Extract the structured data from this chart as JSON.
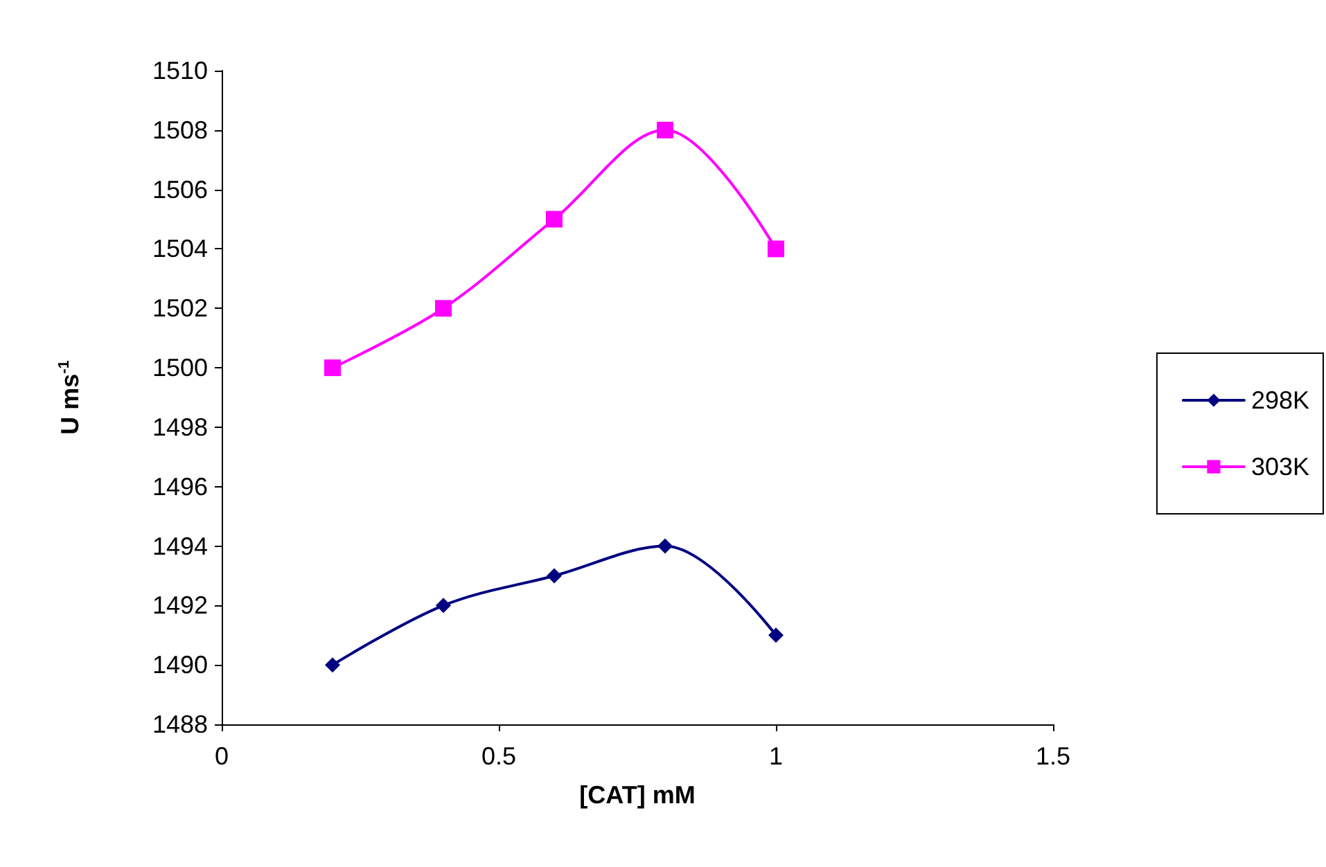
{
  "chart_data": {
    "type": "line",
    "xlabel": "[CAT] mM",
    "ylabel": "U ms$^{-1}$",
    "x": [
      0.2,
      0.4,
      0.6,
      0.8,
      1
    ],
    "series": [
      {
        "name": "298K",
        "color": "#000080",
        "marker": "diamond",
        "values": [
          1490,
          1492,
          1493,
          1494,
          1491
        ]
      },
      {
        "name": "303K",
        "color": "#ff00ff",
        "marker": "square",
        "values": [
          1500,
          1502,
          1505,
          1508,
          1504
        ]
      }
    ],
    "xlim": [
      0,
      1.5
    ],
    "xticks": [
      0,
      0.5,
      1,
      1.5
    ],
    "ylim": [
      1488,
      1510
    ],
    "yticks": [
      1488,
      1490,
      1492,
      1494,
      1496,
      1498,
      1500,
      1502,
      1504,
      1506,
      1508,
      1510
    ],
    "grid": false,
    "legend": "right",
    "line_style": "solid"
  }
}
